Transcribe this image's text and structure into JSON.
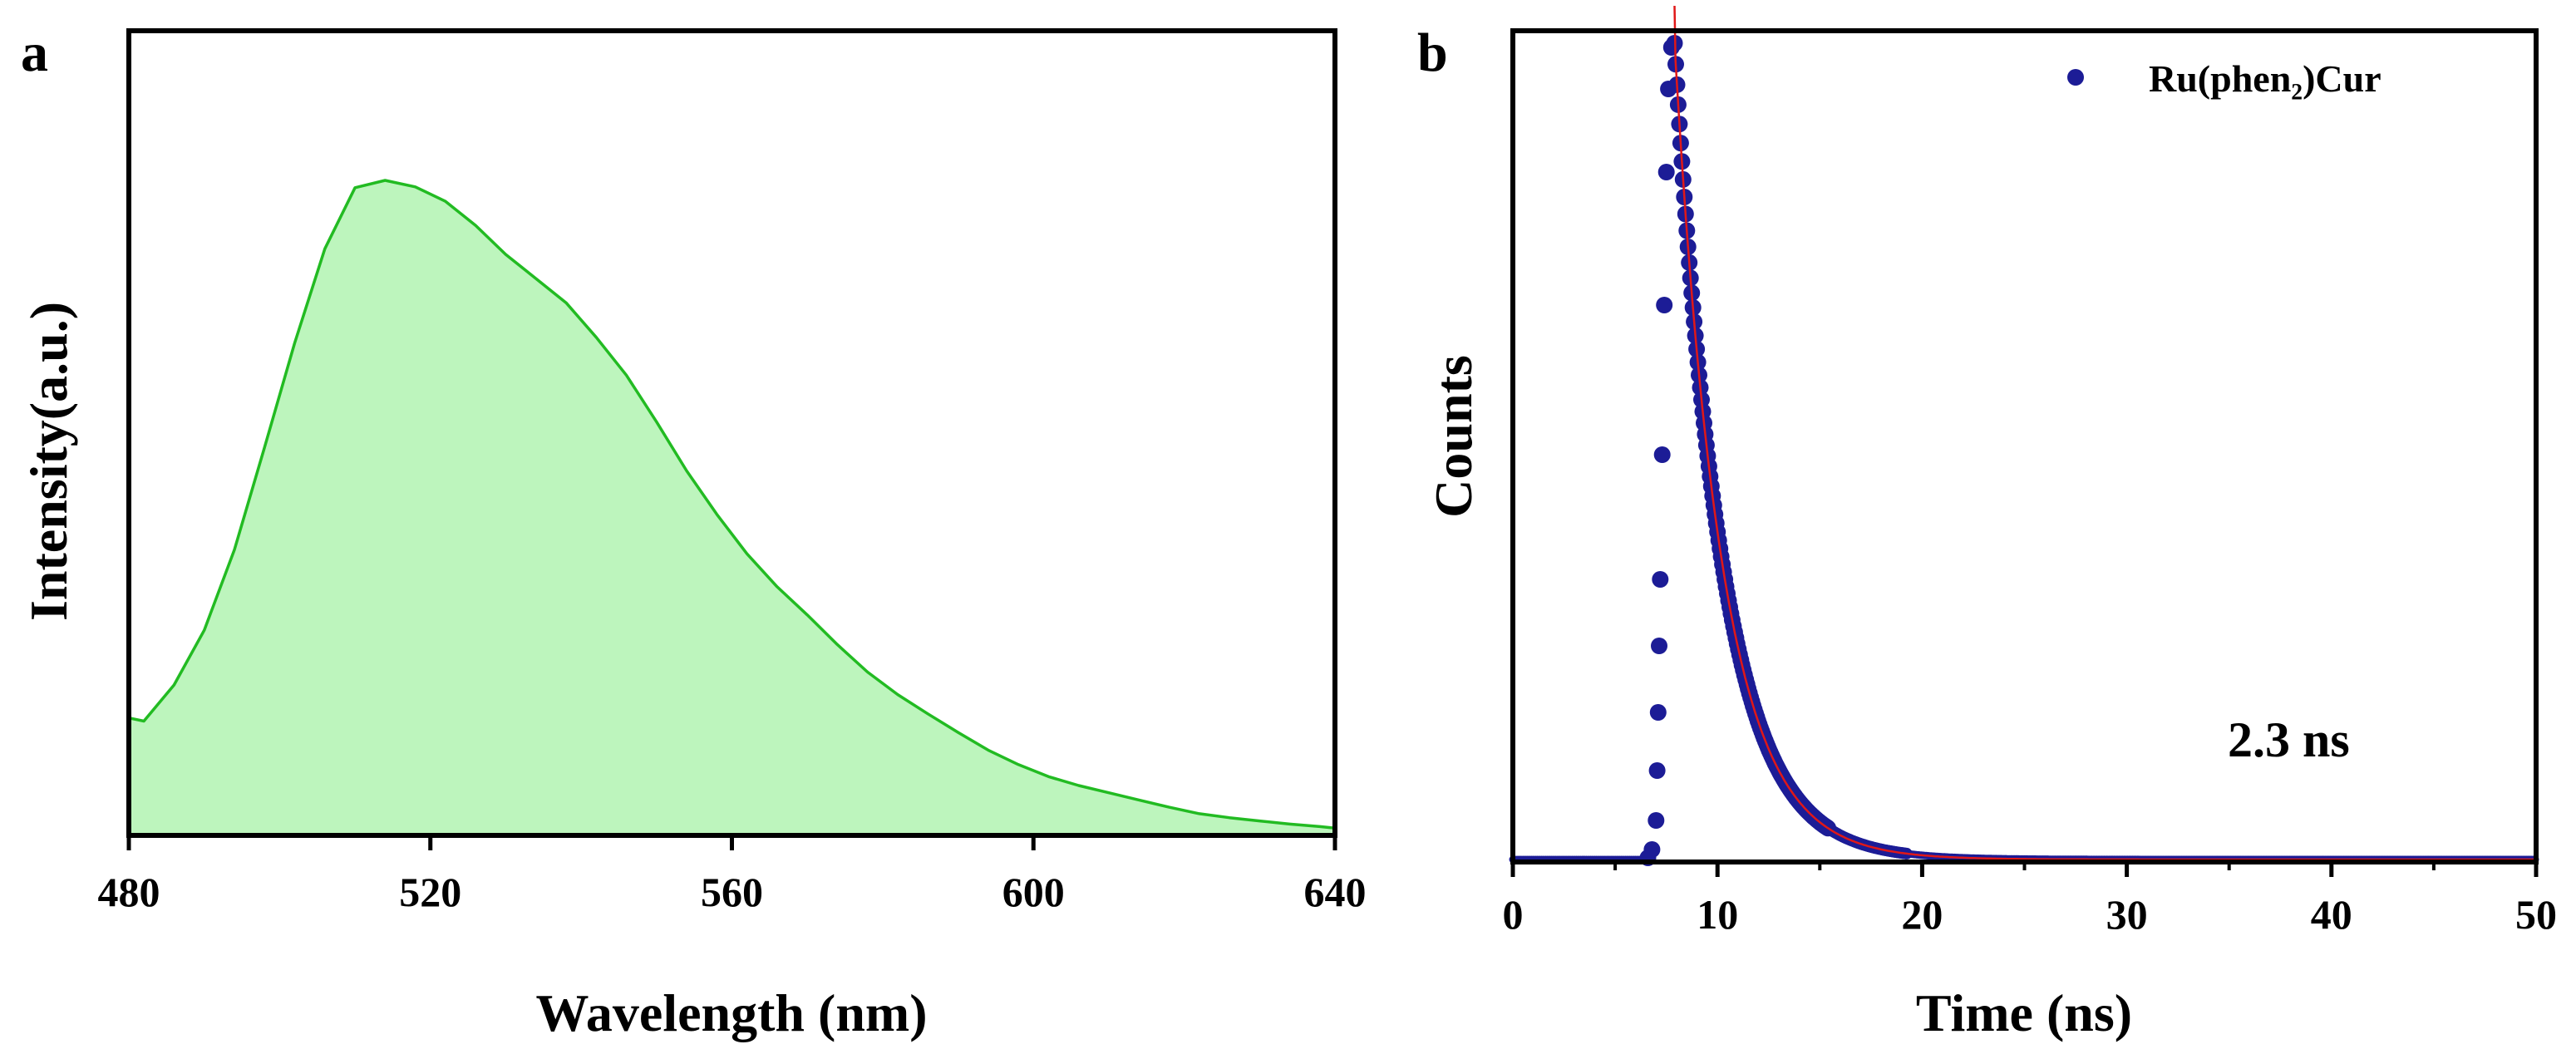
{
  "chart_data": [
    {
      "id": "a",
      "panel_label": "a",
      "type": "area",
      "title": "",
      "xlabel": "Wavelength (nm)",
      "ylabel": "Intensity(a.u.)",
      "xlim": [
        480,
        640
      ],
      "ylim": [
        0,
        1.0
      ],
      "xticks": [
        "480",
        "520",
        "560",
        "600",
        "640"
      ],
      "colors": {
        "line": "#22bb22",
        "fill": "#bdf5bd"
      },
      "x": [
        480,
        482,
        486,
        490,
        494,
        498,
        502,
        506,
        510,
        514,
        518,
        522,
        526,
        530,
        534,
        538,
        542,
        546,
        550,
        554,
        558,
        562,
        566,
        570,
        574,
        578,
        582,
        586,
        590,
        594,
        598,
        602,
        606,
        610,
        614,
        618,
        622,
        626,
        630,
        634,
        638,
        640
      ],
      "values": [
        0.146,
        0.142,
        0.187,
        0.255,
        0.355,
        0.482,
        0.612,
        0.729,
        0.805,
        0.814,
        0.806,
        0.788,
        0.758,
        0.722,
        0.692,
        0.662,
        0.619,
        0.572,
        0.514,
        0.453,
        0.399,
        0.35,
        0.309,
        0.274,
        0.237,
        0.203,
        0.175,
        0.151,
        0.128,
        0.106,
        0.088,
        0.073,
        0.062,
        0.053,
        0.044,
        0.035,
        0.027,
        0.022,
        0.018,
        0.014,
        0.011,
        0.009
      ]
    },
    {
      "id": "b",
      "panel_label": "b",
      "type": "scatter",
      "title": "",
      "xlabel": "Time (ns)",
      "ylabel": "Counts",
      "xlim": [
        0,
        50
      ],
      "ylim": [
        0,
        1.0
      ],
      "xticks": [
        "0",
        "10",
        "20",
        "30",
        "40",
        "50"
      ],
      "legend": {
        "label": "Ru(phen₂)Cur",
        "position": "top-right"
      },
      "annotation": "2.3 ns",
      "colors": {
        "points": "#1c1c96",
        "fit": "#e01818"
      },
      "decay": {
        "t0": 7.9,
        "tau": 2.3,
        "peak": 0.985,
        "baseline": 0.003
      },
      "rise_points": [
        [
          6.6,
          0.005
        ],
        [
          6.8,
          0.015
        ],
        [
          7.0,
          0.05
        ],
        [
          7.05,
          0.11
        ],
        [
          7.1,
          0.18
        ],
        [
          7.15,
          0.26
        ],
        [
          7.2,
          0.34
        ],
        [
          7.3,
          0.49
        ],
        [
          7.4,
          0.67
        ],
        [
          7.5,
          0.83
        ],
        [
          7.6,
          0.93
        ],
        [
          7.75,
          0.98
        ]
      ]
    }
  ]
}
